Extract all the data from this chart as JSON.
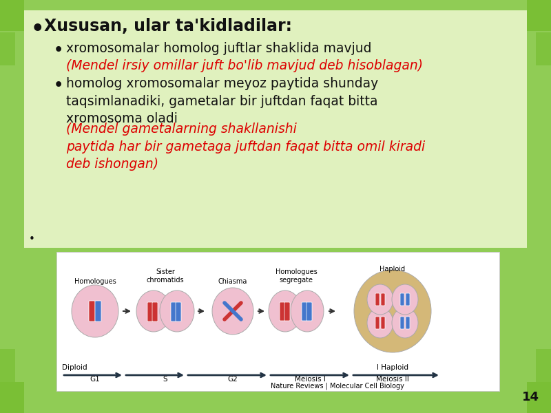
{
  "background_color": "#90cc55",
  "content_bg": "#d8f0a0",
  "title_text": "Xususan, ular ta'kidladilar:",
  "bullet1_black": "xromosomalar homolog juftlar shaklida mavjud ",
  "bullet1_red": "(Mendel irsiy omillar juft bo'lib mavjud deb hisoblagan)",
  "bullet2_black": "homolog xromosomalar meyoz paytida shunday\ntaqsimlanadiki, gametalar bir juftdan faqat bitta\nxromosoma oladi ",
  "bullet2_red": "(Mendel gametalarning shakllanishi\npaytida har bir gametaga juftdan faqat bitta omil kiradi\ndeb ishongan)",
  "page_number": "14",
  "font_size_title": 17,
  "font_size_body": 13.5,
  "text_color_black": "#111111",
  "text_color_red": "#dd0000",
  "corner_color": "#7abf35",
  "diagram_label_1": "Homologues",
  "diagram_label_2": "Sister\nchromatids",
  "diagram_label_3": "Chiasma",
  "diagram_label_4": "Homologues\nsegregate",
  "diagram_label_5": "Haploid",
  "diagram_label_6": "Diploid",
  "diagram_stage_1": "G1",
  "diagram_stage_2": "S",
  "diagram_stage_3": "G2",
  "diagram_stage_4": "Meiosis I",
  "diagram_stage_5": "Meiosis II",
  "nature_text": "Nature Reviews | Molecular Cell Biology"
}
